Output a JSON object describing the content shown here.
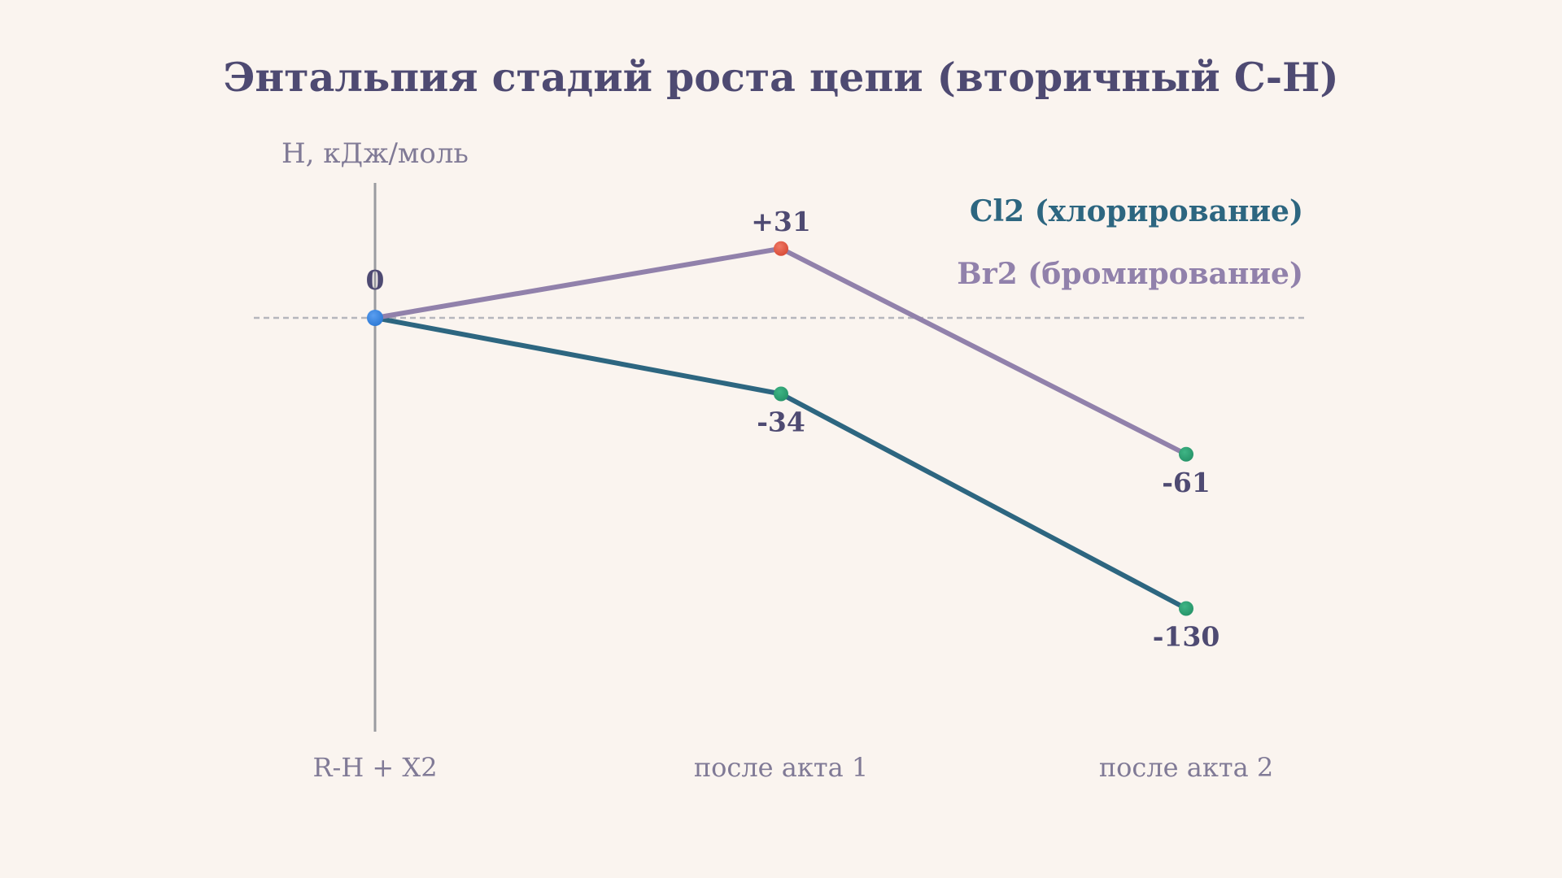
{
  "colors": {
    "background": "#faf4ef",
    "title": "#4e4a72",
    "muted_text": "#807a96",
    "label_text": "#4e4a72",
    "axis": "#9a9ba0",
    "zero_line": "#b5b6bd",
    "point_start": "#2f7bd6",
    "point_up": "#d84c38",
    "point_down": "#27956a"
  },
  "chart_data": {
    "type": "line",
    "title": "Энтальпия стадий роста цепи (вторичный C-H)",
    "ylabel": "H, кДж/моль",
    "categories": [
      "R-H + X2",
      "после акта 1",
      "после акта 2"
    ],
    "ylim": [
      -130,
      31
    ],
    "zero_line": true,
    "legend_position": "top-right",
    "series": [
      {
        "name": "Cl2 (хлорирование)",
        "color": "#2d6680",
        "values": [
          0,
          -34,
          -130
        ],
        "labels": [
          "0",
          "-34",
          "-130"
        ]
      },
      {
        "name": "Br2 (бромирование)",
        "color": "#9181ab",
        "values": [
          0,
          31,
          -61
        ],
        "labels": [
          "0",
          "+31",
          "-61"
        ]
      }
    ]
  }
}
